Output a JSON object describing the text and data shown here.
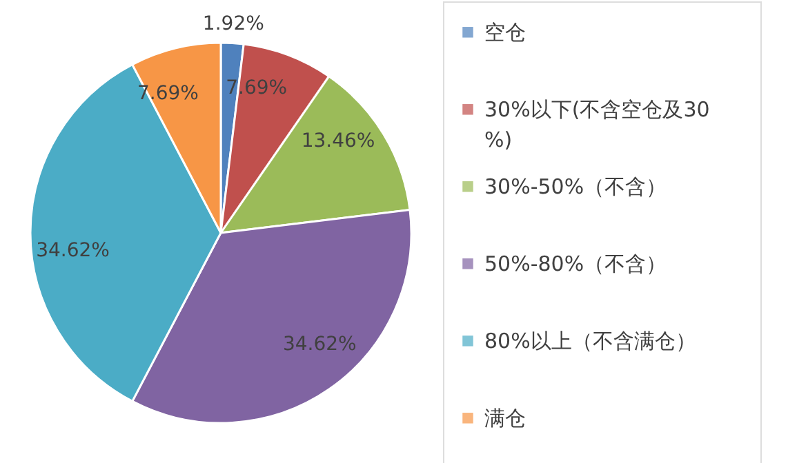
{
  "chart_data": {
    "type": "pie",
    "categories": [
      "空仓",
      "30%以下(不含空仓及30%)",
      "30%-50%（不含）",
      "50%-80%（不含）",
      "80%以上（不含满仓）",
      "满仓"
    ],
    "values": [
      1.92,
      7.69,
      13.46,
      34.62,
      34.62,
      7.69
    ],
    "colors": [
      "#4f81bd",
      "#c0504d",
      "#9bbb59",
      "#8064a2",
      "#4bacc6",
      "#f79646"
    ],
    "value_labels": [
      "1.92%",
      "7.69%",
      "13.46%",
      "34.62%",
      "34.62%",
      "7.69%"
    ],
    "legend": "right"
  }
}
